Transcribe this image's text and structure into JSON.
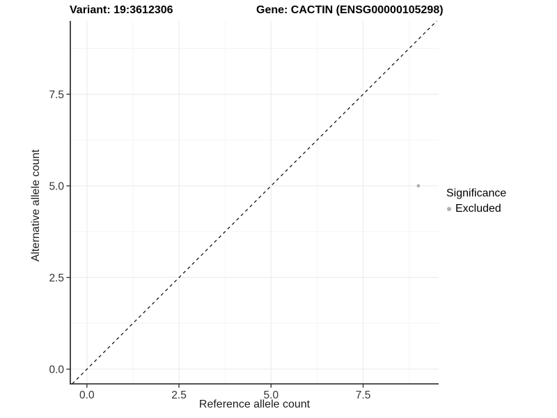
{
  "header": {
    "variant_title": "Variant: 19:3612306",
    "gene_title": "Gene: CACTIN (ENSG00000105298)"
  },
  "legend": {
    "title": "Significance",
    "entries": [
      {
        "label": "Excluded",
        "color": "#b0b0b0"
      }
    ]
  },
  "chart_data": {
    "type": "scatter",
    "title": "Variant: 19:3612306 / Gene: CACTIN (ENSG00000105298)",
    "xlabel": "Reference allele count",
    "ylabel": "Alternative allele count",
    "xlim": [
      -0.45,
      9.55
    ],
    "ylim": [
      -0.4,
      9.5
    ],
    "xticks": [
      0,
      2.5,
      5,
      7.5
    ],
    "yticks": [
      0,
      2.5,
      5,
      7.5
    ],
    "xtick_labels": [
      "0.0",
      "2.5",
      "5.0",
      "7.5"
    ],
    "ytick_labels": [
      "0.0",
      "2.5",
      "5.0",
      "7.5"
    ],
    "xminor": [
      1.25,
      3.75,
      6.25,
      8.75
    ],
    "yminor": [
      1.25,
      3.75,
      6.25,
      8.75
    ],
    "grid": true,
    "legend_position": "right",
    "series": [
      {
        "name": "Excluded",
        "color": "#b0b0b0",
        "points": [
          {
            "x": 9,
            "y": 5
          }
        ]
      }
    ],
    "reference_line": {
      "kind": "identity",
      "style": "dashed",
      "color": "#000000"
    }
  },
  "style": {
    "background": "#ffffff",
    "axis_line_color": "#1a1a1a",
    "tick_color": "#333333",
    "tick_label_color": "#333333",
    "grid_major_color": "#ececec",
    "grid_minor_color": "#f4f4f4"
  }
}
